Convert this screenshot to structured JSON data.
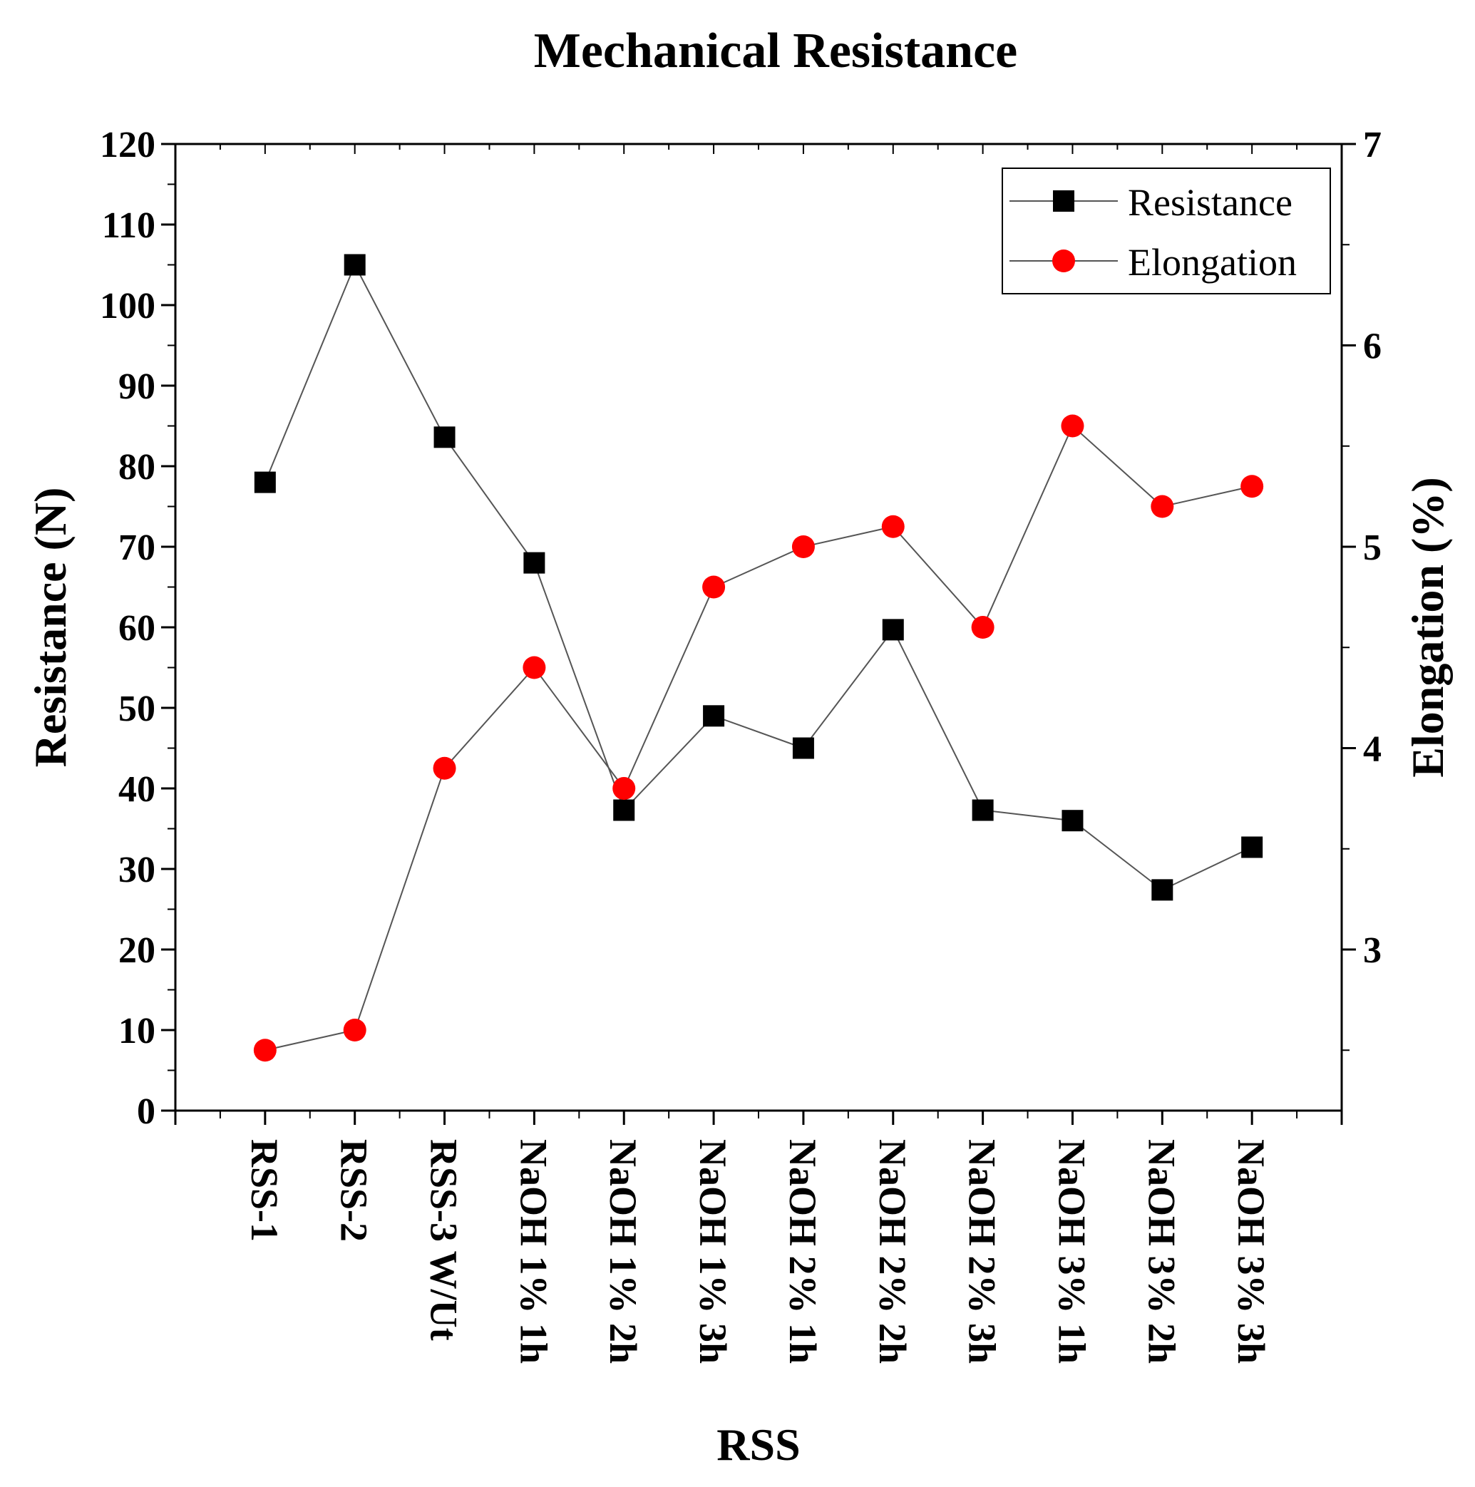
{
  "chart_data": {
    "type": "line",
    "title": "Mechanical Resistance",
    "xlabel": "RSS",
    "ylabel": "Resistance (N)",
    "y2label": "Elongation (%)",
    "ylim": [
      0,
      120
    ],
    "y2lim": [
      2.2,
      7
    ],
    "yticks": [
      "0",
      "10",
      "20",
      "30",
      "40",
      "50",
      "60",
      "70",
      "80",
      "90",
      "100",
      "110",
      "120"
    ],
    "y2ticks": [
      "3",
      "4",
      "5",
      "6",
      "7"
    ],
    "categories": [
      "RSS-1",
      "RSS-2",
      "RSS-3 W/Ut",
      "NaOH 1% 1h",
      "NaOH 1% 2h",
      "NaOH 1% 3h",
      "NaOH 2% 1h",
      "NaOH 2% 2h",
      "NaOH 2% 3h",
      "NaOH 3% 1h",
      "NaOH 3% 2h",
      "NaOH 3% 3h"
    ],
    "series": [
      {
        "name": "Resistance",
        "axis": "left",
        "marker": "square",
        "color": "#000000",
        "values": [
          78,
          105,
          83.6,
          68,
          37.3,
          49,
          45,
          59.7,
          37.3,
          36,
          27.4,
          32.7
        ]
      },
      {
        "name": "Elongation",
        "axis": "right",
        "marker": "circle",
        "color": "#ff0000",
        "values": [
          2.5,
          2.6,
          3.9,
          4.4,
          3.8,
          4.8,
          5.0,
          5.1,
          4.6,
          5.6,
          5.2,
          5.3
        ]
      }
    ],
    "legend": "top-right",
    "grid": false
  }
}
